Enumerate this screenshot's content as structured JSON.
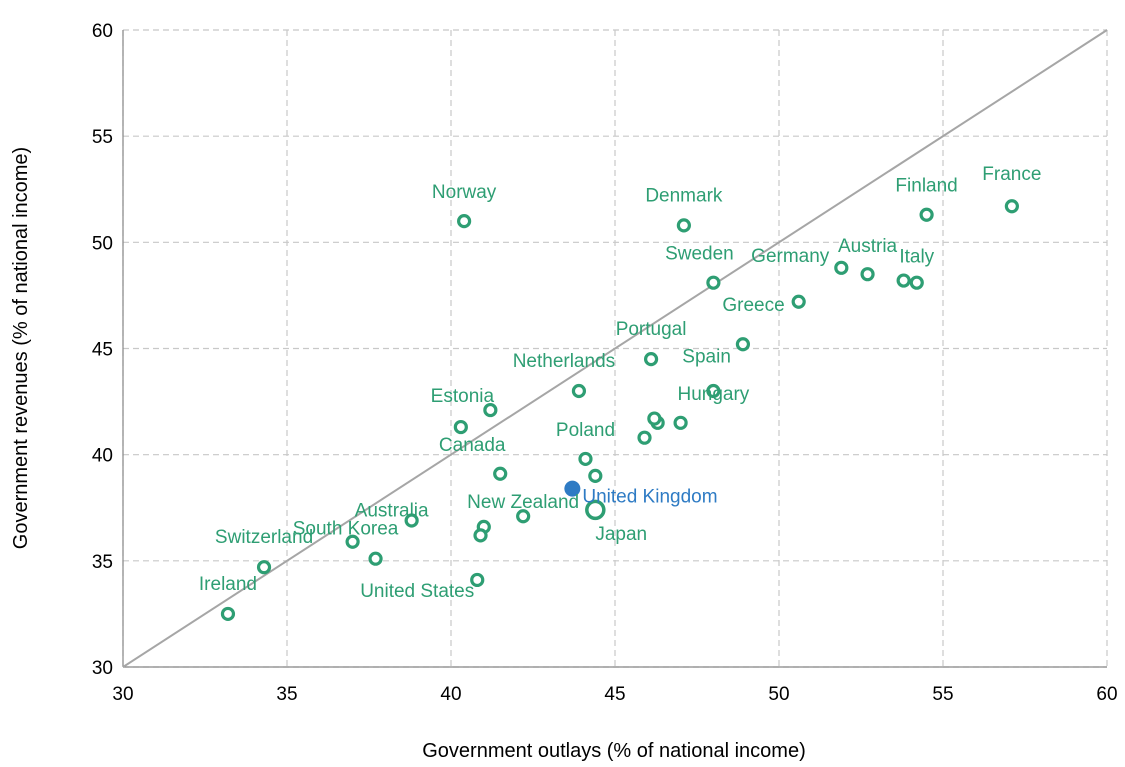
{
  "chart_data": {
    "type": "scatter",
    "xlabel": "Government outlays (% of national income)",
    "ylabel": "Government revenues (% of national income)",
    "xlim": [
      30,
      60
    ],
    "ylim": [
      30,
      60
    ],
    "xticks": [
      30,
      35,
      40,
      45,
      50,
      55,
      60
    ],
    "yticks": [
      30,
      35,
      40,
      45,
      50,
      55,
      60
    ],
    "grid": true,
    "reference_line": {
      "from": [
        30,
        30
      ],
      "to": [
        60,
        60
      ],
      "color": "#a6a6a6"
    },
    "colors": {
      "points": "#2e9e73",
      "highlight": "#2e7bc4"
    },
    "points": [
      {
        "label": "France",
        "x": 57.1,
        "y": 51.7
      },
      {
        "label": "Finland",
        "x": 54.5,
        "y": 51.3
      },
      {
        "label": "Italy",
        "x": 54.2,
        "y": 48.1
      },
      {
        "label": "",
        "x": 53.8,
        "y": 48.2
      },
      {
        "label": "Austria",
        "x": 52.7,
        "y": 48.5
      },
      {
        "label": "Germany",
        "x": 51.9,
        "y": 48.8
      },
      {
        "label": "Greece",
        "x": 50.6,
        "y": 47.2
      },
      {
        "label": "Denmark",
        "x": 47.1,
        "y": 50.8
      },
      {
        "label": "Sweden",
        "x": 48.0,
        "y": 48.1
      },
      {
        "label": "Norway",
        "x": 40.4,
        "y": 51.0
      },
      {
        "label": "Spain",
        "x": 48.9,
        "y": 45.2
      },
      {
        "label": "Portugal",
        "x": 46.1,
        "y": 44.5
      },
      {
        "label": "Netherlands",
        "x": 43.9,
        "y": 43.0
      },
      {
        "label": "Hungary",
        "x": 48.0,
        "y": 43.0
      },
      {
        "label": "",
        "x": 47.0,
        "y": 41.5
      },
      {
        "label": "",
        "x": 46.3,
        "y": 41.5
      },
      {
        "label": "",
        "x": 46.2,
        "y": 41.7
      },
      {
        "label": "",
        "x": 45.9,
        "y": 40.8
      },
      {
        "label": "Estonia",
        "x": 41.2,
        "y": 42.1
      },
      {
        "label": "",
        "x": 40.3,
        "y": 41.3
      },
      {
        "label": "Poland",
        "x": 44.1,
        "y": 39.8
      },
      {
        "label": "",
        "x": 44.4,
        "y": 39.0
      },
      {
        "label": "Canada",
        "x": 41.5,
        "y": 39.1
      },
      {
        "label": "United Kingdom",
        "x": 43.7,
        "y": 38.4,
        "highlight": true
      },
      {
        "label": "Japan",
        "x": 44.4,
        "y": 37.4,
        "large": true
      },
      {
        "label": "New Zealand",
        "x": 42.2,
        "y": 37.1
      },
      {
        "label": "",
        "x": 41.0,
        "y": 36.6
      },
      {
        "label": "",
        "x": 40.9,
        "y": 36.2
      },
      {
        "label": "United States",
        "x": 40.8,
        "y": 34.1
      },
      {
        "label": "Australia",
        "x": 38.8,
        "y": 36.9
      },
      {
        "label": "South Korea",
        "x": 37.7,
        "y": 35.1
      },
      {
        "label": "",
        "x": 37.0,
        "y": 35.9
      },
      {
        "label": "Switzerland",
        "x": 34.3,
        "y": 34.7
      },
      {
        "label": "Ireland",
        "x": 33.2,
        "y": 32.5
      }
    ]
  }
}
